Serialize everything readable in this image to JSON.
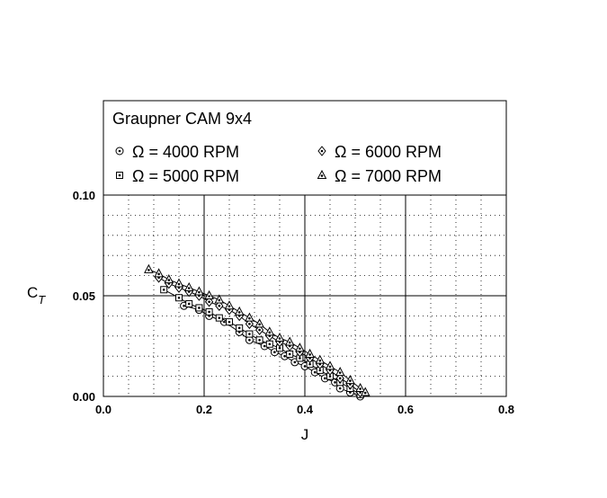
{
  "chart_data": {
    "type": "line",
    "title": "Graupner CAM 9x4",
    "xlabel": "J",
    "ylabel_main": "C",
    "ylabel_sub": "T",
    "xlim": [
      0.0,
      0.8
    ],
    "ylim": [
      0.0,
      0.1
    ],
    "xticks": [
      "0.0",
      "0.2",
      "0.4",
      "0.6",
      "0.8"
    ],
    "yticks": [
      "0.00",
      "0.05",
      "0.10"
    ],
    "grid": "major solid, minor dotted",
    "legend_placement": "top",
    "legend_symbol": "Ω",
    "series": [
      {
        "name": "Ω = 4000 RPM",
        "marker": "circle-dot",
        "x": [
          0.16,
          0.19,
          0.21,
          0.24,
          0.27,
          0.29,
          0.32,
          0.34,
          0.36,
          0.38,
          0.4,
          0.42,
          0.44,
          0.46,
          0.47,
          0.49,
          0.51
        ],
        "y": [
          0.045,
          0.043,
          0.04,
          0.037,
          0.032,
          0.028,
          0.025,
          0.022,
          0.02,
          0.017,
          0.015,
          0.012,
          0.009,
          0.007,
          0.004,
          0.002,
          0.0
        ]
      },
      {
        "name": "Ω = 5000 RPM",
        "marker": "square-dot",
        "x": [
          0.12,
          0.15,
          0.17,
          0.19,
          0.21,
          0.23,
          0.25,
          0.27,
          0.29,
          0.31,
          0.33,
          0.35,
          0.37,
          0.39,
          0.41,
          0.43,
          0.45,
          0.47,
          0.49,
          0.51
        ],
        "y": [
          0.053,
          0.049,
          0.046,
          0.044,
          0.042,
          0.039,
          0.037,
          0.034,
          0.031,
          0.028,
          0.026,
          0.024,
          0.021,
          0.019,
          0.016,
          0.013,
          0.01,
          0.007,
          0.004,
          0.001
        ]
      },
      {
        "name": "Ω = 6000 RPM",
        "marker": "diamond-dot",
        "x": [
          0.11,
          0.13,
          0.15,
          0.17,
          0.19,
          0.21,
          0.23,
          0.25,
          0.27,
          0.29,
          0.31,
          0.33,
          0.35,
          0.37,
          0.39,
          0.41,
          0.43,
          0.45,
          0.47,
          0.49,
          0.51
        ],
        "y": [
          0.059,
          0.056,
          0.054,
          0.052,
          0.05,
          0.047,
          0.045,
          0.043,
          0.04,
          0.036,
          0.033,
          0.03,
          0.027,
          0.025,
          0.022,
          0.019,
          0.016,
          0.013,
          0.009,
          0.006,
          0.002
        ]
      },
      {
        "name": "Ω = 7000 RPM",
        "marker": "triangle-dot",
        "x": [
          0.09,
          0.11,
          0.13,
          0.15,
          0.17,
          0.19,
          0.21,
          0.23,
          0.25,
          0.27,
          0.29,
          0.31,
          0.33,
          0.35,
          0.37,
          0.39,
          0.41,
          0.43,
          0.45,
          0.47,
          0.49,
          0.51,
          0.52
        ],
        "y": [
          0.063,
          0.061,
          0.058,
          0.056,
          0.054,
          0.052,
          0.05,
          0.048,
          0.045,
          0.042,
          0.039,
          0.036,
          0.032,
          0.029,
          0.027,
          0.024,
          0.021,
          0.018,
          0.015,
          0.012,
          0.008,
          0.004,
          0.002
        ]
      }
    ]
  },
  "colors": {
    "line": "#000000",
    "marker_fill": "#ffffff",
    "grid": "#000000",
    "background": "#ffffff"
  }
}
